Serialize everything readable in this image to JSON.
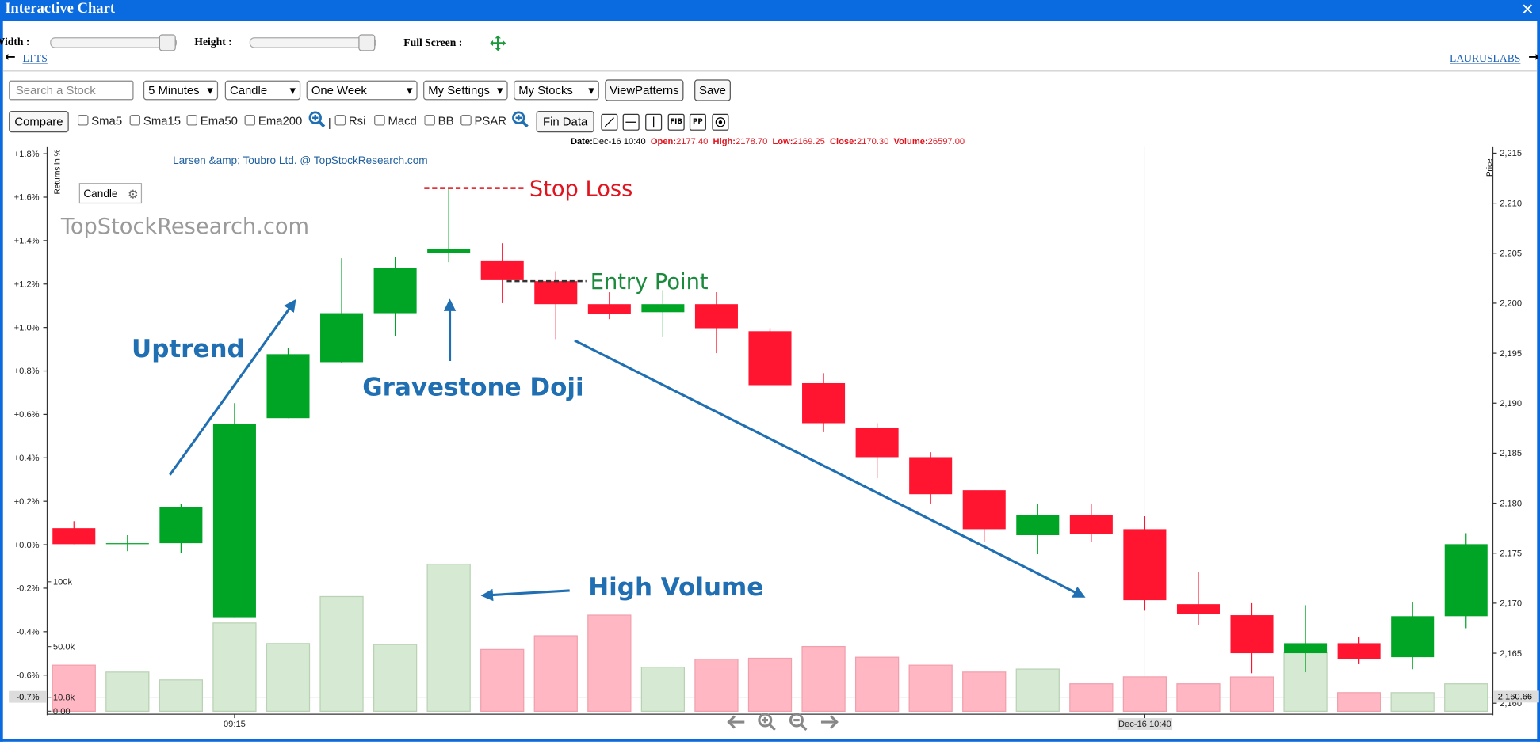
{
  "window": {
    "title": "Interactive Chart",
    "close": "✕"
  },
  "controls": {
    "width_label": "Width :",
    "height_label": "Height :",
    "fullscreen_label": "Full Screen :",
    "prev_stock": "LTTS",
    "next_stock": "LAURUSLABS",
    "search_placeholder": "Search a Stock",
    "selects": [
      "5 Minutes",
      "Candle",
      "One Week",
      "My Settings",
      "My Stocks"
    ],
    "buttons": [
      "ViewPatterns",
      "Save"
    ],
    "compare": "Compare",
    "indicators": [
      "Sma5",
      "Sma15",
      "Ema50",
      "Ema200"
    ],
    "indicators2": [
      "Rsi",
      "Macd",
      "BB",
      "PSAR"
    ],
    "fin_data": "Fin Data",
    "tools": [
      "FIB",
      "PP"
    ]
  },
  "chart_data": {
    "type": "candlestick",
    "title": "Larsen &amp; Toubro Ltd. @ TopStockResearch.com",
    "watermark": "TopStockResearch.com",
    "chart_type_label": "Candle",
    "info": {
      "date_label": "Date:",
      "date": "Dec-16 10:40",
      "open_label": "Open:",
      "open": "2177.40",
      "high_label": "High:",
      "high": "2178.70",
      "low_label": "Low:",
      "low": "2169.25",
      "close_label": "Close:",
      "close": "2170.30",
      "volume_label": "Volume:",
      "volume": "26597.00"
    },
    "y_label": "Price",
    "y2_label": "Returns in %",
    "categories": [
      null,
      null,
      null,
      "09:15",
      null,
      null,
      null,
      null,
      null,
      null,
      null,
      null,
      null,
      null,
      null,
      null,
      null,
      null,
      null,
      null,
      "Dec-16 10:40",
      null,
      null,
      null,
      null,
      null,
      null
    ],
    "open": [
      2177.5,
      2176.0,
      2176.0,
      2168.6,
      2188.5,
      2194.1,
      2199.0,
      2205.0,
      2204.2,
      2202.2,
      2199.9,
      2199.1,
      2199.9,
      2197.2,
      2192.0,
      2187.5,
      2184.6,
      2181.3,
      2176.8,
      2178.8,
      2177.4,
      2169.9,
      2168.8,
      2165.0,
      2166.0,
      2164.6,
      2168.7
    ],
    "high": [
      2178.2,
      2176.8,
      2179.9,
      2190.0,
      2195.5,
      2204.5,
      2204.6,
      2211.4,
      2206.0,
      2203.2,
      2201.1,
      2201.3,
      2201.1,
      2197.5,
      2193.0,
      2188.0,
      2185.1,
      2181.3,
      2179.9,
      2179.9,
      2178.7,
      2173.1,
      2170.0,
      2169.8,
      2166.6,
      2170.1,
      2177.0
    ],
    "low": [
      2175.9,
      2175.2,
      2175.0,
      2168.6,
      2188.5,
      2194.0,
      2196.7,
      2204.1,
      2200.0,
      2196.4,
      2198.4,
      2196.6,
      2195.0,
      2191.8,
      2187.1,
      2182.5,
      2179.9,
      2176.1,
      2174.9,
      2176.1,
      2169.25,
      2167.8,
      2163.0,
      2163.1,
      2163.9,
      2163.4,
      2167.5
    ],
    "close": [
      2175.9,
      2176.0,
      2179.6,
      2187.9,
      2194.9,
      2199.0,
      2203.5,
      2205.4,
      2202.3,
      2199.9,
      2198.9,
      2199.9,
      2197.5,
      2191.8,
      2188.0,
      2184.6,
      2180.9,
      2177.4,
      2178.8,
      2176.9,
      2170.3,
      2168.9,
      2165.0,
      2166.0,
      2164.4,
      2168.7,
      2175.9
    ],
    "volume": [
      35600,
      30300,
      24200,
      68200,
      52300,
      88600,
      51500,
      113600,
      47700,
      58300,
      74200,
      34100,
      40200,
      40900,
      50000,
      41700,
      35600,
      30300,
      32600,
      21200,
      26597,
      21200,
      26500,
      45500,
      14400,
      14400,
      21200
    ],
    "up_color": "#00a526",
    "down_color": "#ff1530",
    "volume_up_color": "#d6e9d2",
    "volume_down_color": "#ffb8c3",
    "ylim": [
      2158.9,
      2215.6
    ],
    "yticks": [
      {
        "value": 2215,
        "label": "2,215"
      },
      {
        "value": 2210,
        "label": "2,210"
      },
      {
        "value": 2205,
        "label": "2,205"
      },
      {
        "value": 2200,
        "label": "2,200"
      },
      {
        "value": 2195,
        "label": "2,195"
      },
      {
        "value": 2190,
        "label": "2,190"
      },
      {
        "value": 2185,
        "label": "2,185"
      },
      {
        "value": 2180,
        "label": "2,180"
      },
      {
        "value": 2175,
        "label": "2,175"
      },
      {
        "value": 2170,
        "label": "2,170"
      },
      {
        "value": 2165,
        "label": "2,165"
      },
      {
        "value": 2160,
        "label": "2,160"
      }
    ],
    "y_marker": {
      "value": 2160.66,
      "label": "2,160.66"
    },
    "y2lim": [
      -0.78,
      1.83
    ],
    "y2ticks": [
      {
        "value": 1.8,
        "label": "+1.8%"
      },
      {
        "value": 1.6,
        "label": "+1.6%"
      },
      {
        "value": 1.4,
        "label": "+1.4%"
      },
      {
        "value": 1.2,
        "label": "+1.2%"
      },
      {
        "value": 1.0,
        "label": "+1.0%"
      },
      {
        "value": 0.8,
        "label": "+0.8%"
      },
      {
        "value": 0.6,
        "label": "+0.6%"
      },
      {
        "value": 0.4,
        "label": "+0.4%"
      },
      {
        "value": 0.2,
        "label": "+0.2%"
      },
      {
        "value": 0,
        "label": "+0.0%"
      },
      {
        "value": -0.2,
        "label": "-0.2%"
      },
      {
        "value": -0.4,
        "label": "-0.4%"
      },
      {
        "value": -0.6,
        "label": "-0.6%"
      }
    ],
    "y2_marker": {
      "value": -0.7,
      "label": "-0.7%"
    },
    "volume_lim": [
      0,
      435600
    ],
    "volume_ticks": [
      {
        "value": 100000,
        "label": "100k"
      },
      {
        "value": 50000,
        "label": "50.0k"
      },
      {
        "value": 10800,
        "label": "10.8k"
      },
      {
        "value": 0,
        "label": "0.00"
      }
    ],
    "levels": [
      {
        "label": "Stop Loss",
        "value": 2211.5,
        "color": "#e0141e"
      },
      {
        "label": "Entry Point",
        "value": 2202.2,
        "color": "#1b8a3c"
      }
    ],
    "annotations": [
      {
        "text": "Uptrend",
        "color": "#1f6fb2"
      },
      {
        "text": "Gravestone Doji",
        "color": "#1f6fb2"
      },
      {
        "text": "High Volume",
        "color": "#1f6fb2"
      }
    ]
  }
}
